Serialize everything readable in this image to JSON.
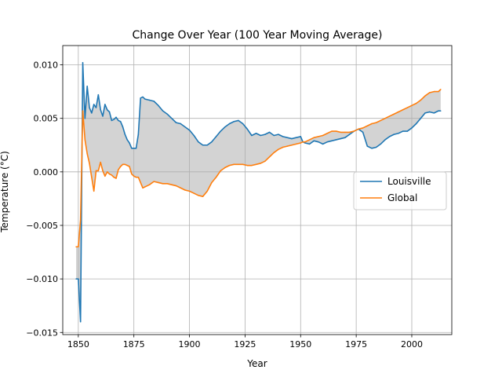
{
  "chart_data": {
    "type": "line",
    "title": "Change Over Year (100 Year Moving Average)",
    "xlabel": "Year",
    "ylabel": "Temperature (°C)",
    "xlim": [
      1843,
      2018
    ],
    "ylim": [
      -0.0152,
      0.0118
    ],
    "xticks": [
      1850,
      1875,
      1900,
      1925,
      1950,
      1975,
      2000
    ],
    "xtick_labels": [
      "1850",
      "1875",
      "1900",
      "1925",
      "1950",
      "1975",
      "2000"
    ],
    "yticks": [
      -0.015,
      -0.01,
      -0.005,
      0.0,
      0.005,
      0.01
    ],
    "ytick_labels": [
      "−0.015",
      "−0.010",
      "−0.005",
      "0.000",
      "0.005",
      "0.010"
    ],
    "grid": true,
    "legend": "center-right",
    "fill_between": true,
    "fill_color": "#d3d3d3",
    "series": [
      {
        "name": "Louisville",
        "color": "#1f77b4",
        "x": [
          1849,
          1850,
          1851,
          1852,
          1853,
          1854,
          1855,
          1856,
          1857,
          1858,
          1859,
          1860,
          1861,
          1862,
          1863,
          1864,
          1865,
          1866,
          1867,
          1868,
          1869,
          1870,
          1871,
          1872,
          1873,
          1874,
          1875,
          1876,
          1877,
          1878,
          1879,
          1880,
          1882,
          1884,
          1886,
          1888,
          1890,
          1892,
          1894,
          1896,
          1898,
          1900,
          1902,
          1904,
          1906,
          1908,
          1910,
          1912,
          1914,
          1916,
          1918,
          1920,
          1922,
          1924,
          1926,
          1928,
          1930,
          1932,
          1934,
          1936,
          1938,
          1940,
          1942,
          1944,
          1946,
          1948,
          1950,
          1951,
          1952,
          1954,
          1956,
          1958,
          1960,
          1962,
          1964,
          1966,
          1968,
          1970,
          1972,
          1974,
          1976,
          1978,
          1980,
          1982,
          1984,
          1986,
          1988,
          1990,
          1992,
          1994,
          1996,
          1998,
          2000,
          2002,
          2004,
          2006,
          2008,
          2010,
          2012,
          2013
        ],
        "values": [
          -0.01,
          -0.01,
          -0.014,
          0.0102,
          0.005,
          0.008,
          0.006,
          0.0055,
          0.0063,
          0.006,
          0.0072,
          0.0058,
          0.0052,
          0.0063,
          0.0058,
          0.0056,
          0.0048,
          0.0049,
          0.0051,
          0.0048,
          0.0047,
          0.0042,
          0.0035,
          0.003,
          0.0027,
          0.0022,
          0.0022,
          0.0022,
          0.0035,
          0.0069,
          0.007,
          0.0068,
          0.0067,
          0.0066,
          0.0062,
          0.0057,
          0.0054,
          0.005,
          0.0046,
          0.0045,
          0.0042,
          0.0039,
          0.0034,
          0.0028,
          0.0025,
          0.0025,
          0.0028,
          0.0033,
          0.0038,
          0.0042,
          0.0045,
          0.0047,
          0.0048,
          0.0045,
          0.004,
          0.0034,
          0.0036,
          0.0034,
          0.0035,
          0.0037,
          0.0034,
          0.0035,
          0.0033,
          0.0032,
          0.0031,
          0.0032,
          0.0033,
          0.0028,
          0.0027,
          0.0026,
          0.0029,
          0.0028,
          0.0026,
          0.0028,
          0.0029,
          0.003,
          0.0031,
          0.0032,
          0.0035,
          0.0038,
          0.004,
          0.0037,
          0.0024,
          0.0022,
          0.0023,
          0.0026,
          0.003,
          0.0033,
          0.0035,
          0.0036,
          0.0038,
          0.0038,
          0.0041,
          0.0045,
          0.005,
          0.0055,
          0.0056,
          0.0055,
          0.0057,
          0.0057
        ]
      },
      {
        "name": "Global",
        "color": "#ff7f0e",
        "x": [
          1849,
          1850,
          1851,
          1852,
          1853,
          1854,
          1855,
          1856,
          1857,
          1858,
          1859,
          1860,
          1861,
          1862,
          1863,
          1864,
          1865,
          1866,
          1867,
          1868,
          1869,
          1870,
          1871,
          1872,
          1873,
          1874,
          1875,
          1876,
          1877,
          1878,
          1879,
          1880,
          1882,
          1884,
          1886,
          1888,
          1890,
          1892,
          1894,
          1896,
          1898,
          1900,
          1902,
          1904,
          1906,
          1908,
          1910,
          1912,
          1914,
          1916,
          1918,
          1920,
          1922,
          1924,
          1926,
          1928,
          1930,
          1932,
          1934,
          1936,
          1938,
          1940,
          1942,
          1944,
          1946,
          1948,
          1950,
          1951,
          1952,
          1954,
          1956,
          1958,
          1960,
          1962,
          1964,
          1966,
          1968,
          1970,
          1972,
          1974,
          1976,
          1978,
          1980,
          1982,
          1984,
          1986,
          1988,
          1990,
          1992,
          1994,
          1996,
          1998,
          2000,
          2002,
          2004,
          2006,
          2008,
          2010,
          2012,
          2013
        ],
        "values": [
          -0.007,
          -0.007,
          -0.0045,
          0.0057,
          0.003,
          0.0017,
          0.0008,
          -0.0005,
          -0.0018,
          0.0001,
          0.0001,
          0.0009,
          0.0001,
          -0.0004,
          0.0,
          -0.0002,
          -0.0003,
          -0.0005,
          -0.0006,
          0.0002,
          0.0005,
          0.0007,
          0.0007,
          0.0006,
          0.0005,
          -0.0002,
          -0.0004,
          -0.0005,
          -0.0005,
          -0.001,
          -0.0015,
          -0.0014,
          -0.0012,
          -0.0009,
          -0.001,
          -0.0011,
          -0.0011,
          -0.0012,
          -0.0013,
          -0.0015,
          -0.0017,
          -0.0018,
          -0.002,
          -0.0022,
          -0.0023,
          -0.0018,
          -0.001,
          -0.0005,
          0.0001,
          0.0004,
          0.0006,
          0.0007,
          0.0007,
          0.0007,
          0.0006,
          0.0006,
          0.0007,
          0.0008,
          0.001,
          0.0014,
          0.0018,
          0.0021,
          0.0023,
          0.0024,
          0.0025,
          0.0026,
          0.0027,
          0.0028,
          0.0028,
          0.003,
          0.0032,
          0.0033,
          0.0034,
          0.0036,
          0.0038,
          0.0038,
          0.0037,
          0.0037,
          0.0037,
          0.0038,
          0.004,
          0.0041,
          0.0043,
          0.0045,
          0.0046,
          0.0048,
          0.005,
          0.0052,
          0.0054,
          0.0056,
          0.0058,
          0.006,
          0.0062,
          0.0064,
          0.0067,
          0.0071,
          0.0074,
          0.0075,
          0.0075,
          0.0077
        ]
      }
    ]
  }
}
